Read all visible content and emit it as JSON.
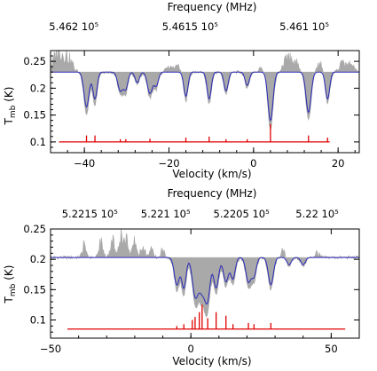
{
  "chart_data": [
    {
      "type": "area",
      "xlabel": "Velocity (km/s)",
      "ylabel": "T_mb (K)",
      "ylabel_main": "T",
      "ylabel_sub": "mb",
      "ylabel_unit": " (K)",
      "top_axis_label": "Frequency (MHz)",
      "xlim": [
        -48,
        25
      ],
      "ylim": [
        0.08,
        0.27
      ],
      "x_ticks": [
        -40,
        -20,
        0,
        20
      ],
      "x_tick_labels": [
        "−40",
        "−20",
        "0",
        "20"
      ],
      "y_ticks": [
        0.1,
        0.15,
        0.2,
        0.25
      ],
      "y_tick_labels": [
        "0.1",
        "0.15",
        "0.2",
        "0.25"
      ],
      "top_ticks": [
        {
          "label": "5.462 10⁵",
          "x": -42.5
        },
        {
          "label": "5.4615 10⁵",
          "x": -15
        },
        {
          "label": "5.461 10⁵",
          "x": 12
        }
      ],
      "baseline": 0.23,
      "absorption_lines": [
        {
          "x": -39.5,
          "depth": 0.065,
          "width": 0.6
        },
        {
          "x": -37.5,
          "depth": 0.05,
          "width": 0.5
        },
        {
          "x": -31.5,
          "depth": 0.035,
          "width": 0.6
        },
        {
          "x": -30.2,
          "depth": 0.03,
          "width": 0.5
        },
        {
          "x": -27.5,
          "depth": 0.02,
          "width": 0.5
        },
        {
          "x": -24.5,
          "depth": 0.04,
          "width": 0.6
        },
        {
          "x": -23.0,
          "depth": 0.025,
          "width": 0.5
        },
        {
          "x": -16.0,
          "depth": 0.045,
          "width": 0.5
        },
        {
          "x": -10.5,
          "depth": 0.05,
          "width": 0.5
        },
        {
          "x": -6.5,
          "depth": 0.035,
          "width": 0.5
        },
        {
          "x": -1.5,
          "depth": 0.025,
          "width": 0.5
        },
        {
          "x": 4.0,
          "depth": 0.09,
          "width": 0.6
        },
        {
          "x": 13.0,
          "depth": 0.075,
          "width": 0.6
        },
        {
          "x": 17.5,
          "depth": 0.05,
          "width": 0.5
        }
      ],
      "emission_spikes": [
        {
          "x": -47,
          "h": 0.02
        },
        {
          "x": -46,
          "h": 0.025
        },
        {
          "x": -45,
          "h": 0.015
        },
        {
          "x": -44,
          "h": 0.02
        },
        {
          "x": -43,
          "h": 0.01
        },
        {
          "x": -20,
          "h": 0.01
        },
        {
          "x": -18,
          "h": 0.012
        },
        {
          "x": 2.0,
          "h": 0.01
        },
        {
          "x": 7.5,
          "h": 0.012
        },
        {
          "x": 8.5,
          "h": 0.02
        },
        {
          "x": 10.0,
          "h": 0.015
        },
        {
          "x": 15.5,
          "h": 0.018
        },
        {
          "x": 21.0,
          "h": 0.018
        },
        {
          "x": 23.0,
          "h": 0.015
        }
      ],
      "stick_baseline": 0.1,
      "sticks": [
        {
          "x": -39.5,
          "h": 0.012
        },
        {
          "x": -37.5,
          "h": 0.012
        },
        {
          "x": -31.5,
          "h": 0.005
        },
        {
          "x": -30.2,
          "h": 0.005
        },
        {
          "x": -24.5,
          "h": 0.006
        },
        {
          "x": -16.0,
          "h": 0.008
        },
        {
          "x": -10.5,
          "h": 0.01
        },
        {
          "x": -6.5,
          "h": 0.005
        },
        {
          "x": -1.5,
          "h": 0.005
        },
        {
          "x": 4.0,
          "h": 0.033
        },
        {
          "x": 13.0,
          "h": 0.012
        },
        {
          "x": 17.5,
          "h": 0.008
        }
      ],
      "stick_range": [
        -46,
        18
      ],
      "colors": {
        "observed": "#a9a9a9",
        "model": "#2a2ab8",
        "lines": "#e00000"
      }
    },
    {
      "type": "area",
      "xlabel": "Velocity (km/s)",
      "ylabel": "T_mb (K)",
      "ylabel_main": "T",
      "ylabel_sub": "mb",
      "ylabel_unit": " (K)",
      "top_axis_label": "Frequency (MHz)",
      "xlim": [
        -50,
        60
      ],
      "ylim": [
        0.07,
        0.25
      ],
      "x_ticks": [
        -50,
        0,
        50
      ],
      "x_tick_labels": [
        "−50",
        "0",
        "50"
      ],
      "y_ticks": [
        0.1,
        0.15,
        0.2,
        0.25
      ],
      "y_tick_labels": [
        "0.1",
        "0.15",
        "0.2",
        "0.25"
      ],
      "top_ticks": [
        {
          "label": "5.2215 10⁵",
          "x": -36
        },
        {
          "label": "5.221 10⁵",
          "x": -9
        },
        {
          "label": "5.2205 10⁵",
          "x": 18
        },
        {
          "label": "5.22 10⁵",
          "x": 45
        }
      ],
      "baseline": 0.203,
      "absorption_lines": [
        {
          "x": -5.0,
          "depth": 0.045,
          "width": 0.9
        },
        {
          "x": -2.5,
          "depth": 0.05,
          "width": 0.8
        },
        {
          "x": 1.5,
          "depth": 0.06,
          "width": 1.0
        },
        {
          "x": 4.0,
          "depth": 0.055,
          "width": 1.2
        },
        {
          "x": 6.0,
          "depth": 0.06,
          "width": 0.9
        },
        {
          "x": 9.0,
          "depth": 0.05,
          "width": 0.9
        },
        {
          "x": 12.5,
          "depth": 0.04,
          "width": 0.9
        },
        {
          "x": 15.0,
          "depth": 0.035,
          "width": 0.8
        },
        {
          "x": 20.5,
          "depth": 0.04,
          "width": 0.9
        },
        {
          "x": 22.5,
          "depth": 0.03,
          "width": 0.8
        },
        {
          "x": 28.5,
          "depth": 0.045,
          "width": 0.9
        },
        {
          "x": 35.0,
          "depth": 0.012,
          "width": 0.8
        },
        {
          "x": 40.0,
          "depth": 0.012,
          "width": 0.8
        }
      ],
      "emission_spikes": [
        {
          "x": -38,
          "h": 0.02
        },
        {
          "x": -32,
          "h": 0.025
        },
        {
          "x": -28,
          "h": 0.03
        },
        {
          "x": -25,
          "h": 0.04
        },
        {
          "x": -23,
          "h": 0.03
        },
        {
          "x": -20,
          "h": 0.025
        },
        {
          "x": -17,
          "h": 0.02
        },
        {
          "x": -14,
          "h": 0.015
        },
        {
          "x": -10,
          "h": 0.012
        },
        {
          "x": 33,
          "h": 0.012
        },
        {
          "x": 45,
          "h": 0.01
        }
      ],
      "stick_baseline": 0.085,
      "sticks": [
        {
          "x": -5.0,
          "h": 0.005
        },
        {
          "x": -2.5,
          "h": 0.008
        },
        {
          "x": 0.5,
          "h": 0.015
        },
        {
          "x": 1.5,
          "h": 0.02
        },
        {
          "x": 3.0,
          "h": 0.028
        },
        {
          "x": 4.0,
          "h": 0.04
        },
        {
          "x": 6.0,
          "h": 0.018
        },
        {
          "x": 9.0,
          "h": 0.028
        },
        {
          "x": 12.5,
          "h": 0.022
        },
        {
          "x": 15.0,
          "h": 0.008
        },
        {
          "x": 20.5,
          "h": 0.01
        },
        {
          "x": 22.5,
          "h": 0.008
        },
        {
          "x": 28.5,
          "h": 0.01
        }
      ],
      "stick_range": [
        -44,
        55
      ],
      "colors": {
        "observed": "#a9a9a9",
        "model": "#2a2ab8",
        "lines": "#e00000"
      }
    }
  ]
}
